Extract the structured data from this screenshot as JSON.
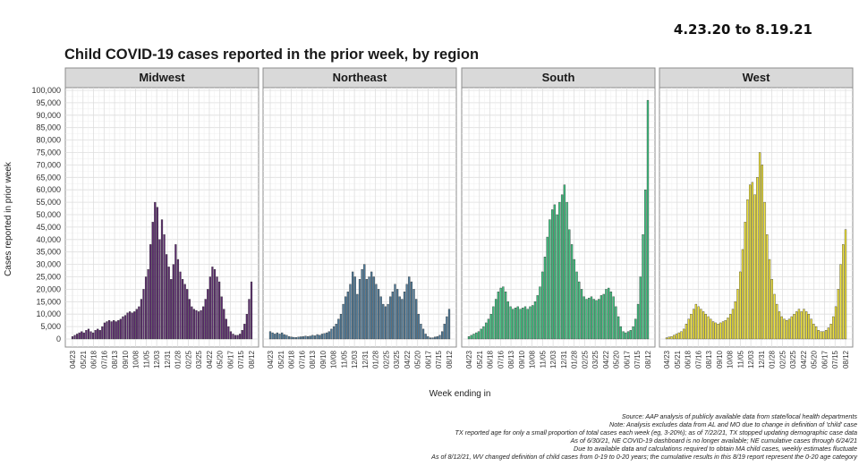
{
  "header": {
    "title": "Child COVID-19 cases reported in the prior week, by region",
    "date_range": "4.23.20 to 8.19.21"
  },
  "footnotes": [
    "Source: AAP analysis of publicly available data from state/local health departments",
    "Note: Analysis excludes data from AL and MO due to change in definition of 'child' case",
    "TX reported age for only a small proportion of total cases each week (eg, 3-20%); as of 7/22/21, TX stopped updating demographic case data",
    "As of 6/30/21, NE COVID-19 dashboard is no longer available; NE cumulative cases through 6/24/21",
    "Due to available data and calculations required to obtain MA child cases, weekly estimates fluctuate",
    "As of 8/12/21, WV changed definition of child cases from 0-19 to 0-20 years; the cumulative results in this 8/19 report represent the 0-20 age category"
  ],
  "chart_data": {
    "type": "bar",
    "xlabel": "Week ending in",
    "ylabel": "Cases reported in prior week",
    "ylim": [
      0,
      100000
    ],
    "yticks": [
      "0",
      "5,000",
      "10,000",
      "15,000",
      "20,000",
      "25,000",
      "30,000",
      "35,000",
      "40,000",
      "45,000",
      "50,000",
      "55,000",
      "60,000",
      "65,000",
      "70,000",
      "75,000",
      "80,000",
      "85,000",
      "90,000",
      "95,000",
      "100,000"
    ],
    "x_tick_labels": [
      "04/23",
      "05/21",
      "06/18",
      "07/16",
      "08/13",
      "09/10",
      "10/08",
      "11/05",
      "12/03",
      "12/31",
      "01/28",
      "02/25",
      "03/25",
      "04/22",
      "05/20",
      "06/17",
      "07/15",
      "08/12"
    ],
    "grid": true,
    "facets": [
      {
        "name": "Midwest",
        "color": "#5b2a6e",
        "values": [
          1000,
          1500,
          2000,
          2500,
          3000,
          2500,
          3500,
          4000,
          3000,
          2500,
          3500,
          4000,
          3500,
          5000,
          6500,
          7000,
          7500,
          7000,
          7500,
          7000,
          7500,
          8000,
          9000,
          9500,
          10500,
          11000,
          10500,
          11000,
          12000,
          13000,
          16000,
          20000,
          25000,
          28000,
          38000,
          47000,
          55000,
          53000,
          40000,
          48000,
          42000,
          34000,
          29000,
          24000,
          30000,
          38000,
          32000,
          27000,
          24000,
          22000,
          20000,
          16000,
          13000,
          12000,
          11500,
          11000,
          11500,
          13000,
          16000,
          20000,
          25000,
          29000,
          28000,
          25000,
          23000,
          17000,
          12000,
          8000,
          5000,
          3000,
          2000,
          1500,
          1500,
          2000,
          3500,
          6000,
          10000,
          16000,
          23000
        ]
      },
      {
        "name": "Northeast",
        "color": "#4e7a99",
        "values": [
          3000,
          2500,
          2000,
          2500,
          2000,
          2500,
          1800,
          1500,
          1000,
          800,
          700,
          600,
          800,
          900,
          1000,
          1200,
          1000,
          1200,
          1500,
          1300,
          1800,
          1500,
          2000,
          2200,
          2500,
          3000,
          4000,
          5000,
          6000,
          8000,
          10000,
          14000,
          17000,
          19000,
          22000,
          27000,
          25000,
          18000,
          24000,
          28000,
          30000,
          24000,
          25000,
          27000,
          25000,
          22000,
          20000,
          17000,
          14000,
          13000,
          14000,
          17000,
          19000,
          22000,
          20000,
          17000,
          16000,
          19000,
          22000,
          25000,
          23000,
          20000,
          16000,
          10000,
          6000,
          4000,
          2000,
          1000,
          500,
          500,
          800,
          1000,
          1500,
          3000,
          6000,
          9000,
          12000
        ]
      },
      {
        "name": "South",
        "color": "#3fbf7f",
        "values": [
          1000,
          1500,
          2000,
          2500,
          3000,
          4000,
          5000,
          6500,
          8000,
          10000,
          13000,
          16000,
          19000,
          20500,
          21000,
          19000,
          15000,
          13000,
          12000,
          12500,
          13000,
          12000,
          12500,
          13000,
          12000,
          13000,
          13500,
          15000,
          17500,
          21000,
          27000,
          33000,
          41000,
          48000,
          52000,
          54000,
          50000,
          55000,
          58000,
          62000,
          55000,
          44000,
          38000,
          32000,
          27000,
          23000,
          20000,
          17000,
          16000,
          16500,
          17000,
          16000,
          15500,
          16000,
          17500,
          18000,
          20000,
          20500,
          19000,
          17000,
          13000,
          9000,
          5000,
          3000,
          2500,
          3000,
          3500,
          5000,
          8000,
          14000,
          25000,
          42000,
          60000,
          96000
        ]
      },
      {
        "name": "West",
        "color": "#efe23a",
        "values": [
          500,
          800,
          1000,
          1500,
          2000,
          2500,
          3000,
          4000,
          6000,
          8000,
          10000,
          12000,
          14000,
          13000,
          12000,
          11000,
          10000,
          9000,
          8000,
          7000,
          6500,
          6000,
          6500,
          7000,
          7500,
          8500,
          10000,
          12000,
          15000,
          20000,
          27000,
          36000,
          47000,
          56000,
          62000,
          63000,
          58000,
          65000,
          75000,
          70000,
          55000,
          42000,
          32000,
          24000,
          18000,
          14000,
          11000,
          9000,
          8000,
          7500,
          8000,
          9000,
          10000,
          11000,
          12000,
          11000,
          12000,
          11000,
          10000,
          8000,
          6000,
          5000,
          3500,
          3000,
          3000,
          3500,
          4500,
          6000,
          9000,
          13000,
          20000,
          30000,
          38000,
          44000
        ]
      }
    ]
  }
}
